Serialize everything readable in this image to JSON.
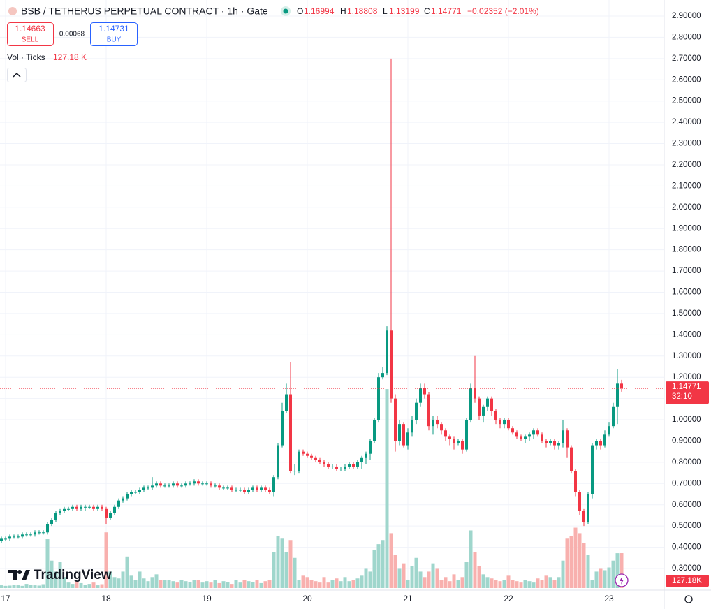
{
  "chart_data": {
    "type": "candlestick",
    "title": "BSB / TETHERUS PERPETUAL CONTRACT · 1h · Gate",
    "header": {
      "open_label": "O",
      "open": 1.16994,
      "high_label": "H",
      "high": 1.18808,
      "low_label": "L",
      "low": 1.13199,
      "close_label": "C",
      "close": 1.14771,
      "change": "−0.02352 (−2.01%)"
    },
    "trade": {
      "sell_price": 1.14663,
      "sell_label": "SELL",
      "spread": 0.00068,
      "buy_price": 1.14731,
      "buy_label": "BUY"
    },
    "volume_title": "Vol · Ticks",
    "volume_header_label": "127.18 K",
    "volume_tag_label": "127.18K",
    "countdown": "32:10",
    "logo": "TradingView",
    "up_color": "#089981",
    "down_color": "#f23645",
    "up_volume_color": "#9fd6cc",
    "down_volume_color": "#f8b0ae",
    "day_labels": [
      "17",
      "18",
      "19",
      "20",
      "21",
      "22",
      "23"
    ],
    "open": [
      0.43,
      0.44,
      0.44,
      0.45,
      0.45,
      0.45,
      0.46,
      0.46,
      0.46,
      0.47,
      0.47,
      0.47,
      0.51,
      0.53,
      0.56,
      0.57,
      0.58,
      0.58,
      0.59,
      0.58,
      0.59,
      0.59,
      0.59,
      0.58,
      0.59,
      0.58,
      0.54,
      0.56,
      0.59,
      0.62,
      0.63,
      0.65,
      0.66,
      0.66,
      0.67,
      0.68,
      0.68,
      0.69,
      0.7,
      0.69,
      0.69,
      0.69,
      0.7,
      0.69,
      0.69,
      0.7,
      0.7,
      0.71,
      0.7,
      0.7,
      0.7,
      0.69,
      0.69,
      0.68,
      0.68,
      0.68,
      0.67,
      0.67,
      0.67,
      0.66,
      0.67,
      0.68,
      0.67,
      0.68,
      0.67,
      0.66,
      0.73,
      0.88,
      1.04,
      1.12,
      0.76,
      0.76,
      0.85,
      0.84,
      0.83,
      0.82,
      0.81,
      0.8,
      0.79,
      0.78,
      0.78,
      0.77,
      0.77,
      0.78,
      0.79,
      0.78,
      0.8,
      0.82,
      0.84,
      0.9,
      1.0,
      1.2,
      1.22,
      1.42,
      1.1,
      0.9,
      0.98,
      0.88,
      0.94,
      1.0,
      1.08,
      1.15,
      1.12,
      0.97,
      1.0,
      0.98,
      0.95,
      0.92,
      0.91,
      0.89,
      0.9,
      0.86,
      1.0,
      1.15,
      1.1,
      1.02,
      1.06,
      1.1,
      1.04,
      1.0,
      0.98,
      1.0,
      0.96,
      0.94,
      0.92,
      0.91,
      0.92,
      0.93,
      0.95,
      0.93,
      0.9,
      0.89,
      0.9,
      0.88,
      0.89,
      0.95,
      0.87,
      0.76,
      0.66,
      0.57,
      0.52,
      0.65,
      0.88,
      0.9,
      0.88,
      0.93,
      0.97,
      1.06,
      1.16994
    ],
    "high": [
      0.45,
      0.45,
      0.46,
      0.46,
      0.46,
      0.47,
      0.47,
      0.47,
      0.48,
      0.48,
      0.48,
      0.52,
      0.54,
      0.57,
      0.58,
      0.59,
      0.59,
      0.6,
      0.6,
      0.6,
      0.6,
      0.6,
      0.6,
      0.6,
      0.6,
      0.59,
      0.57,
      0.6,
      0.63,
      0.64,
      0.66,
      0.67,
      0.67,
      0.68,
      0.69,
      0.69,
      0.73,
      0.71,
      0.71,
      0.7,
      0.7,
      0.71,
      0.71,
      0.7,
      0.71,
      0.71,
      0.72,
      0.72,
      0.71,
      0.71,
      0.71,
      0.7,
      0.7,
      0.69,
      0.69,
      0.69,
      0.68,
      0.68,
      0.68,
      0.68,
      0.69,
      0.69,
      0.69,
      0.69,
      0.68,
      0.74,
      0.89,
      1.08,
      1.17,
      1.27,
      0.79,
      0.86,
      0.86,
      0.85,
      0.84,
      0.83,
      0.82,
      0.81,
      0.8,
      0.79,
      0.79,
      0.78,
      0.79,
      0.8,
      0.8,
      0.81,
      0.83,
      0.85,
      0.91,
      1.01,
      1.22,
      1.25,
      1.44,
      2.7,
      1.12,
      1.0,
      0.99,
      0.96,
      1.02,
      1.1,
      1.17,
      1.17,
      1.13,
      1.02,
      1.02,
      0.99,
      0.96,
      0.93,
      0.92,
      0.91,
      0.91,
      1.01,
      1.17,
      1.3,
      1.11,
      1.07,
      1.11,
      1.11,
      1.05,
      1.01,
      1.01,
      1.01,
      0.97,
      0.95,
      0.93,
      0.93,
      0.94,
      0.96,
      0.96,
      0.94,
      0.91,
      0.91,
      0.91,
      0.9,
      1.0,
      0.96,
      0.88,
      0.77,
      0.67,
      0.58,
      0.66,
      0.89,
      0.91,
      0.91,
      0.95,
      0.99,
      1.08,
      1.24,
      1.18808
    ],
    "low": [
      0.42,
      0.43,
      0.43,
      0.44,
      0.44,
      0.44,
      0.45,
      0.45,
      0.45,
      0.46,
      0.46,
      0.46,
      0.5,
      0.52,
      0.55,
      0.56,
      0.57,
      0.57,
      0.57,
      0.57,
      0.57,
      0.58,
      0.57,
      0.57,
      0.57,
      0.51,
      0.53,
      0.55,
      0.58,
      0.61,
      0.62,
      0.64,
      0.65,
      0.65,
      0.66,
      0.67,
      0.67,
      0.68,
      0.68,
      0.68,
      0.68,
      0.68,
      0.68,
      0.68,
      0.68,
      0.69,
      0.69,
      0.69,
      0.69,
      0.69,
      0.68,
      0.68,
      0.67,
      0.67,
      0.67,
      0.66,
      0.66,
      0.66,
      0.65,
      0.65,
      0.66,
      0.66,
      0.66,
      0.66,
      0.65,
      0.64,
      0.72,
      0.87,
      1.03,
      0.75,
      0.74,
      0.75,
      0.83,
      0.82,
      0.81,
      0.8,
      0.79,
      0.78,
      0.77,
      0.77,
      0.76,
      0.76,
      0.76,
      0.77,
      0.77,
      0.77,
      0.77,
      0.79,
      0.81,
      0.89,
      0.99,
      1.19,
      1.21,
      1.08,
      0.85,
      0.88,
      0.87,
      0.86,
      0.92,
      0.98,
      1.06,
      1.1,
      0.95,
      0.93,
      0.96,
      0.93,
      0.9,
      0.88,
      0.86,
      0.88,
      0.84,
      0.85,
      0.99,
      1.08,
      1.0,
      0.99,
      1.04,
      1.02,
      0.98,
      0.96,
      0.96,
      0.95,
      0.93,
      0.91,
      0.9,
      0.89,
      0.9,
      0.91,
      0.92,
      0.89,
      0.87,
      0.88,
      0.86,
      0.86,
      0.87,
      0.82,
      0.75,
      0.64,
      0.55,
      0.5,
      0.51,
      0.63,
      0.86,
      0.86,
      0.87,
      0.92,
      0.96,
      0.98,
      1.13199
    ],
    "close": [
      0.44,
      0.44,
      0.45,
      0.45,
      0.45,
      0.46,
      0.46,
      0.46,
      0.47,
      0.47,
      0.47,
      0.51,
      0.53,
      0.56,
      0.57,
      0.58,
      0.58,
      0.59,
      0.58,
      0.59,
      0.59,
      0.59,
      0.58,
      0.59,
      0.58,
      0.54,
      0.56,
      0.59,
      0.62,
      0.63,
      0.65,
      0.66,
      0.66,
      0.67,
      0.68,
      0.68,
      0.69,
      0.7,
      0.69,
      0.69,
      0.69,
      0.7,
      0.69,
      0.69,
      0.7,
      0.7,
      0.71,
      0.7,
      0.7,
      0.7,
      0.69,
      0.69,
      0.68,
      0.68,
      0.68,
      0.67,
      0.67,
      0.67,
      0.66,
      0.67,
      0.68,
      0.67,
      0.68,
      0.67,
      0.66,
      0.73,
      0.88,
      1.04,
      1.12,
      0.76,
      0.76,
      0.85,
      0.84,
      0.83,
      0.82,
      0.81,
      0.8,
      0.79,
      0.78,
      0.78,
      0.77,
      0.77,
      0.78,
      0.79,
      0.78,
      0.8,
      0.82,
      0.84,
      0.9,
      1.0,
      1.2,
      1.22,
      1.42,
      1.1,
      0.9,
      0.98,
      0.88,
      0.94,
      1.0,
      1.08,
      1.15,
      1.12,
      0.97,
      1.0,
      0.98,
      0.95,
      0.92,
      0.91,
      0.89,
      0.9,
      0.86,
      1.0,
      1.15,
      1.1,
      1.02,
      1.06,
      1.1,
      1.04,
      1.0,
      0.98,
      1.0,
      0.96,
      0.94,
      0.92,
      0.91,
      0.92,
      0.93,
      0.95,
      0.93,
      0.9,
      0.89,
      0.9,
      0.88,
      0.89,
      0.95,
      0.87,
      0.76,
      0.66,
      0.57,
      0.52,
      0.65,
      0.88,
      0.9,
      0.88,
      0.93,
      0.97,
      1.06,
      1.17,
      1.14771
    ],
    "volume": [
      10,
      8,
      9,
      12,
      10,
      8,
      15,
      12,
      10,
      9,
      14,
      178,
      100,
      60,
      95,
      40,
      20,
      15,
      25,
      18,
      12,
      15,
      20,
      10,
      14,
      203,
      60,
      40,
      35,
      60,
      115,
      45,
      30,
      60,
      35,
      25,
      40,
      50,
      30,
      28,
      30,
      25,
      20,
      30,
      25,
      22,
      30,
      28,
      20,
      25,
      20,
      30,
      18,
      25,
      22,
      15,
      28,
      20,
      30,
      25,
      22,
      28,
      18,
      25,
      30,
      130,
      190,
      180,
      130,
      175,
      110,
      30,
      45,
      40,
      30,
      25,
      20,
      40,
      20,
      30,
      35,
      25,
      40,
      25,
      30,
      35,
      45,
      70,
      60,
      140,
      160,
      175,
      725,
      200,
      120,
      70,
      90,
      30,
      80,
      110,
      60,
      40,
      60,
      90,
      70,
      30,
      40,
      25,
      50,
      30,
      40,
      95,
      210,
      130,
      80,
      50,
      40,
      35,
      30,
      25,
      30,
      45,
      30,
      25,
      20,
      30,
      25,
      20,
      35,
      30,
      45,
      40,
      30,
      40,
      100,
      180,
      190,
      220,
      200,
      165,
      120,
      30,
      60,
      70,
      65,
      75,
      100,
      127,
      127.18
    ],
    "volume_lim": [
      0,
      1000
    ],
    "ylim": [
      0.3,
      2.9
    ],
    "yticks": [
      {
        "value": 2.9,
        "label": "2.90000"
      },
      {
        "value": 2.8,
        "label": "2.80000"
      },
      {
        "value": 2.7,
        "label": "2.70000"
      },
      {
        "value": 2.6,
        "label": "2.60000"
      },
      {
        "value": 2.5,
        "label": "2.50000"
      },
      {
        "value": 2.4,
        "label": "2.40000"
      },
      {
        "value": 2.3,
        "label": "2.30000"
      },
      {
        "value": 2.2,
        "label": "2.20000"
      },
      {
        "value": 2.1,
        "label": "2.10000"
      },
      {
        "value": 2.0,
        "label": "2.00000"
      },
      {
        "value": 1.9,
        "label": "1.90000"
      },
      {
        "value": 1.8,
        "label": "1.80000"
      },
      {
        "value": 1.7,
        "label": "1.70000"
      },
      {
        "value": 1.6,
        "label": "1.60000"
      },
      {
        "value": 1.5,
        "label": "1.50000"
      },
      {
        "value": 1.4,
        "label": "1.40000"
      },
      {
        "value": 1.3,
        "label": "1.30000"
      },
      {
        "value": 1.2,
        "label": "1.20000"
      },
      {
        "value": 1.1,
        "label": "1.10000"
      },
      {
        "value": 1.0,
        "label": "1.00000"
      },
      {
        "value": 0.9,
        "label": "0.90000"
      },
      {
        "value": 0.8,
        "label": "0.80000"
      },
      {
        "value": 0.7,
        "label": "0.70000"
      },
      {
        "value": 0.6,
        "label": "0.60000"
      },
      {
        "value": 0.5,
        "label": "0.50000"
      },
      {
        "value": 0.4,
        "label": "0.40000"
      },
      {
        "value": 0.3,
        "label": "0.30000"
      }
    ],
    "grid": true
  }
}
